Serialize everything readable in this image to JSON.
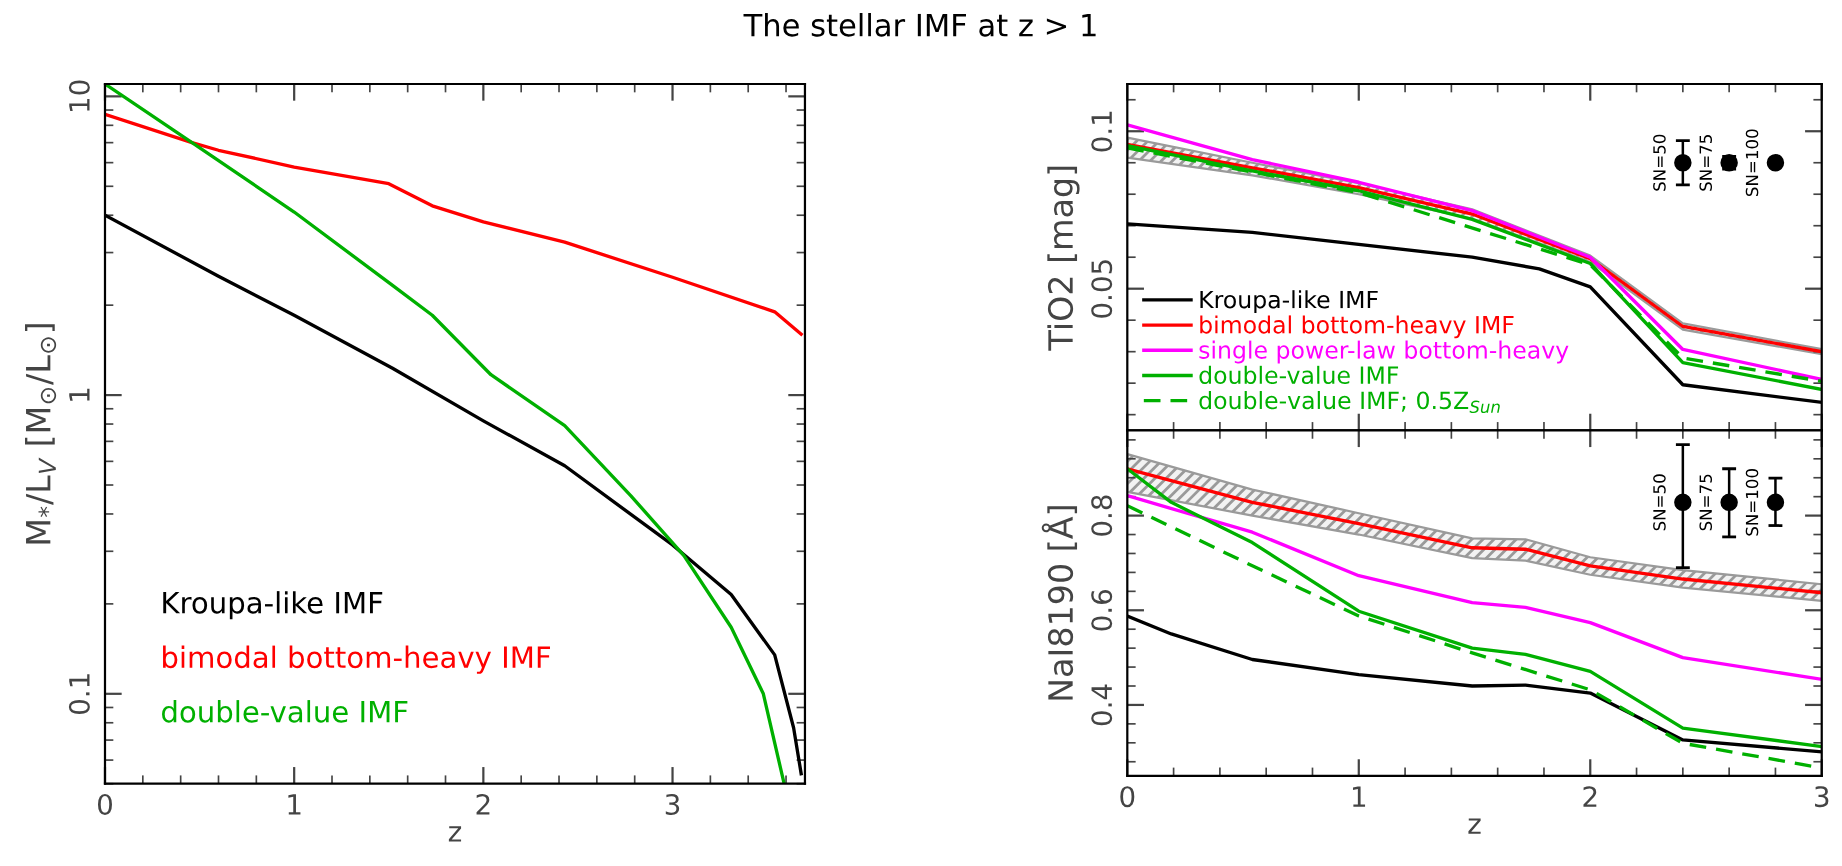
{
  "chart_data": [
    {
      "type": "line",
      "title": "The stellar IMF at z > 1",
      "xlabel": "z",
      "ylabel": "M$_{*}$/L$_{V}$ [M$_{⊙}$/L$_{⊙}$]",
      "log": "y",
      "xlim": [
        0,
        3.7
      ],
      "ylim": [
        0.05,
        11
      ],
      "xticks": [
        0,
        1,
        2,
        3
      ],
      "yticks": [
        0.1,
        1,
        10
      ],
      "grid": false,
      "legend": "bottom left",
      "series": [
        {
          "name": "Kroupa-like IMF",
          "color": "#000000",
          "x": [
            0,
            0.6,
            1.0,
            1.52,
            2.0,
            2.43,
            3.0,
            3.31,
            3.54,
            3.64,
            3.68
          ],
          "values": [
            4.0,
            2.5,
            1.85,
            1.23,
            0.82,
            0.58,
            0.315,
            0.215,
            0.135,
            0.077,
            0.054
          ]
        },
        {
          "name": "bimodal bottom-heavy IMF",
          "color": "#ff0000",
          "x": [
            0,
            0.46,
            0.6,
            1.0,
            1.5,
            1.73,
            2.0,
            2.43,
            3.0,
            3.54,
            3.68
          ],
          "values": [
            8.7,
            7.0,
            6.6,
            5.8,
            5.1,
            4.3,
            3.8,
            3.25,
            2.48,
            1.9,
            1.6
          ]
        },
        {
          "name": "double-value IMF",
          "color": "#00b000",
          "x": [
            0,
            0.46,
            1.0,
            1.52,
            1.73,
            2.04,
            2.43,
            2.78,
            3.06,
            3.31,
            3.48,
            3.59
          ],
          "values": [
            11,
            7.0,
            4.1,
            2.33,
            1.85,
            1.17,
            0.79,
            0.46,
            0.29,
            0.167,
            0.1,
            0.05
          ]
        }
      ]
    },
    {
      "type": "line",
      "ylabel": "TiO2 [mag]",
      "xlim": [
        0,
        3
      ],
      "ylim": [
        0.005,
        0.115
      ],
      "xticks": [
        0,
        1,
        2,
        3
      ],
      "yticks": [
        0.05,
        0.1
      ],
      "tick_labels": "y",
      "grid": false,
      "legend": "bottom left",
      "series": [
        {
          "name": "Kroupa-like IMF",
          "color": "#000000",
          "x": [
            0,
            0.54,
            1.49,
            1.78,
            2.0,
            2.4,
            3.0
          ],
          "values": [
            0.0706,
            0.0679,
            0.06,
            0.0563,
            0.0506,
            0.0195,
            0.0139
          ]
        },
        {
          "name": "bimodal bottom-heavy IMF",
          "color": "#ff0000",
          "x": [
            0,
            0.54,
            1.0,
            1.49,
            2.0,
            2.4,
            3.0
          ],
          "values": [
            0.0958,
            0.0884,
            0.0821,
            0.0737,
            0.0595,
            0.038,
            0.03
          ],
          "lower": [
            0.0916,
            0.086,
            0.08,
            0.0722,
            0.0585,
            0.037,
            0.0292
          ],
          "upper": [
            0.098,
            0.09,
            0.0835,
            0.0752,
            0.0605,
            0.039,
            0.0308
          ]
        },
        {
          "name": "single power-law bottom-heavy",
          "color": "#ff00ff",
          "x": [
            0,
            0.54,
            1.0,
            1.49,
            2.0,
            2.4,
            3.0
          ],
          "values": [
            0.102,
            0.091,
            0.0838,
            0.0748,
            0.06,
            0.0307,
            0.0212
          ]
        },
        {
          "name": "double-value IMF",
          "color": "#00b000",
          "x": [
            0,
            0.54,
            1.0,
            1.49,
            2.0,
            2.4,
            3.0
          ],
          "values": [
            0.0954,
            0.0874,
            0.0811,
            0.072,
            0.058,
            0.0265,
            0.018
          ]
        },
        {
          "name": "double-value IMF; 0.5Z$_{Sun}$",
          "color": "#00b000",
          "line_style": "dashed",
          "x": [
            0,
            1.0,
            2.0,
            2.4,
            3.0
          ],
          "values": [
            0.0947,
            0.0805,
            0.0576,
            0.028,
            0.0206
          ]
        },
        {
          "type": "scatter",
          "color": "#000000",
          "marker": "circle",
          "x": [
            2.4,
            2.6,
            2.8
          ],
          "values": [
            0.09,
            0.09,
            0.09
          ],
          "errors": [
            0.007,
            0.002,
            null
          ]
        }
      ],
      "annotations": [
        {
          "text": "SN=50",
          "x": 2.4,
          "y": 0.09
        },
        {
          "text": "SN=75",
          "x": 2.6,
          "y": 0.09
        },
        {
          "text": "SN=100",
          "x": 2.8,
          "y": 0.09
        }
      ]
    },
    {
      "type": "line",
      "xlabel": "z",
      "ylabel": "NaI8190 [Å]",
      "xlim": [
        0,
        3
      ],
      "ylim": [
        0.25,
        0.98
      ],
      "xticks": [
        0,
        1,
        2,
        3
      ],
      "yticks": [
        0.4,
        0.6,
        0.8
      ],
      "grid": false,
      "series": [
        {
          "color": "#000000",
          "x": [
            0,
            0.19,
            0.54,
            1.0,
            1.49,
            1.72,
            2.0,
            2.4,
            3.0
          ],
          "values": [
            0.588,
            0.55,
            0.496,
            0.464,
            0.44,
            0.442,
            0.425,
            0.326,
            0.301
          ]
        },
        {
          "color": "#ff0000",
          "x": [
            0,
            0.54,
            1.0,
            1.49,
            1.72,
            2.0,
            2.4,
            3.0
          ],
          "values": [
            0.899,
            0.828,
            0.783,
            0.732,
            0.729,
            0.694,
            0.666,
            0.637
          ],
          "lower": [
            0.85,
            0.8,
            0.76,
            0.71,
            0.705,
            0.675,
            0.648,
            0.62
          ],
          "upper": [
            0.93,
            0.855,
            0.805,
            0.752,
            0.75,
            0.712,
            0.685,
            0.655
          ]
        },
        {
          "color": "#ff00ff",
          "x": [
            0,
            0.54,
            1.0,
            1.49,
            1.72,
            2.0,
            2.4,
            3.0
          ],
          "values": [
            0.842,
            0.765,
            0.673,
            0.616,
            0.606,
            0.574,
            0.5,
            0.454
          ]
        },
        {
          "color": "#00b000",
          "x": [
            0,
            0.19,
            0.54,
            1.0,
            1.49,
            1.72,
            2.0,
            2.4,
            3.0
          ],
          "values": [
            0.899,
            0.828,
            0.743,
            0.598,
            0.52,
            0.507,
            0.471,
            0.351,
            0.312
          ]
        },
        {
          "color": "#00b000",
          "line_style": "dashed",
          "x": [
            0,
            0.54,
            1.0,
            1.49,
            2.0,
            2.4,
            3.0
          ],
          "values": [
            0.821,
            0.694,
            0.588,
            0.51,
            0.432,
            0.319,
            0.267
          ]
        },
        {
          "type": "scatter",
          "color": "#000000",
          "marker": "circle",
          "x": [
            2.4,
            2.6,
            2.8
          ],
          "values": [
            0.828,
            0.828,
            0.828
          ],
          "errors": [
            [
              0.69,
              0.95
            ],
            [
              0.755,
              0.899
            ],
            [
              0.779,
              0.879
            ]
          ]
        }
      ],
      "annotations": [
        {
          "text": "SN=50",
          "x": 2.4,
          "y": 0.828
        },
        {
          "text": "SN=75",
          "x": 2.6,
          "y": 0.828
        },
        {
          "text": "SN=100",
          "x": 2.8,
          "y": 0.828
        }
      ]
    }
  ]
}
